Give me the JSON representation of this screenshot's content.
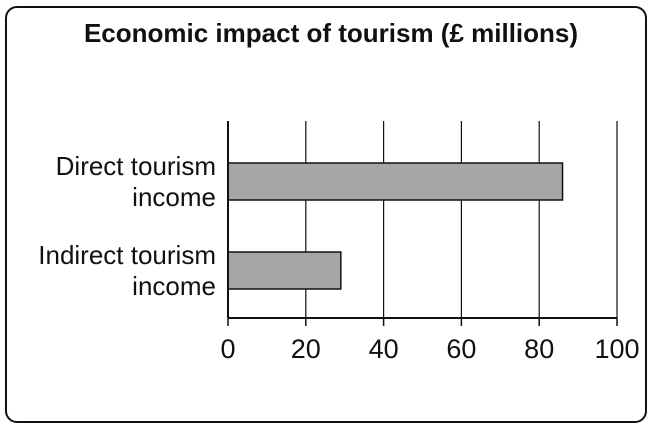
{
  "chart_data": {
    "type": "bar",
    "orientation": "horizontal",
    "title": "Economic impact of tourism (£ millions)",
    "categories": [
      [
        "Direct tourism",
        "income"
      ],
      [
        "Indirect tourism",
        "income"
      ]
    ],
    "values": [
      86,
      29
    ],
    "xlim": [
      0,
      100
    ],
    "xticks": [
      0,
      20,
      40,
      60,
      80,
      100
    ],
    "tick_labels": [
      "0",
      "20",
      "40",
      "60",
      "80",
      "100"
    ],
    "grid": "vertical",
    "xlabel": "",
    "ylabel": ""
  },
  "colors": {
    "bar_fill": "#a6a6a6",
    "bar_stroke": "#111111",
    "axis": "#111111",
    "grid": "#111111",
    "text": "#111111"
  }
}
